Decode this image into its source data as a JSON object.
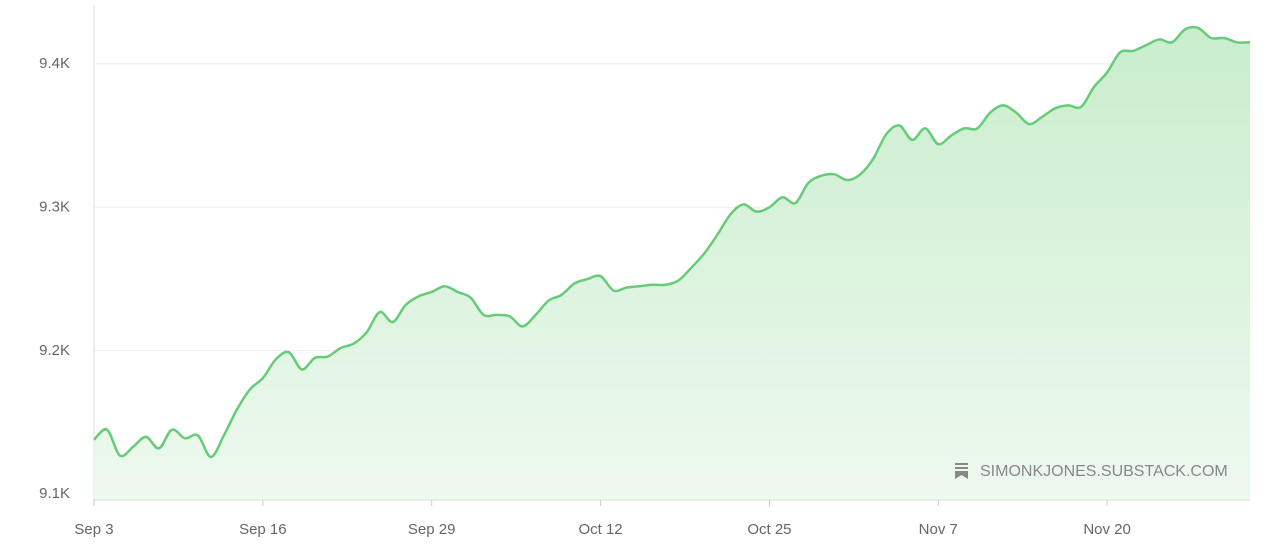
{
  "chart_data": {
    "type": "area",
    "categories": [
      "Sep 3",
      null,
      null,
      null,
      null,
      null,
      null,
      null,
      null,
      null,
      null,
      null,
      null,
      "Sep 16",
      null,
      null,
      null,
      null,
      null,
      null,
      null,
      null,
      null,
      null,
      null,
      null,
      "Sep 29",
      null,
      null,
      null,
      null,
      null,
      null,
      null,
      null,
      null,
      null,
      null,
      null,
      "Oct 12",
      null,
      null,
      null,
      null,
      null,
      null,
      null,
      null,
      null,
      null,
      null,
      null,
      "Oct 25",
      null,
      null,
      null,
      null,
      null,
      null,
      null,
      null,
      null,
      null,
      null,
      null,
      "Nov 7",
      null,
      null,
      null,
      null,
      null,
      null,
      null,
      null,
      null,
      null,
      null,
      null,
      "Nov 20",
      null,
      null,
      null,
      null,
      null,
      null,
      null,
      null,
      null,
      null,
      null
    ],
    "values": [
      9138,
      9145,
      9127,
      9133,
      9140,
      9132,
      9145,
      9139,
      9141,
      9126,
      9141,
      9159,
      9173,
      9181,
      9194,
      9199,
      9187,
      9195,
      9196,
      9202,
      9205,
      9213,
      9227,
      9220,
      9232,
      9238,
      9241,
      9245,
      9241,
      9237,
      9225,
      9225,
      9224,
      9217,
      9225,
      9235,
      9239,
      9247,
      9250,
      9252,
      9242,
      9244,
      9245,
      9246,
      9246,
      9249,
      9258,
      9268,
      9281,
      9295,
      9302,
      9297,
      9300,
      9307,
      9303,
      9317,
      9322,
      9323,
      9319,
      9323,
      9334,
      9351,
      9357,
      9347,
      9355,
      9344,
      9350,
      9355,
      9355,
      9366,
      9371,
      9366,
      9358,
      9363,
      9369,
      9371,
      9370,
      9384,
      9394,
      9408,
      9409,
      9413,
      9417,
      9415,
      9424,
      9425,
      9418,
      9418,
      9415,
      9415
    ],
    "color": "#66cc77",
    "ylim": [
      9096,
      9441
    ],
    "yticks": [
      {
        "value": 9100,
        "label": "9.1K"
      },
      {
        "value": 9200,
        "label": "9.2K"
      },
      {
        "value": 9300,
        "label": "9.3K"
      },
      {
        "value": 9400,
        "label": "9.4K"
      }
    ],
    "grid": true,
    "watermark": "SIMONKJONES.SUBSTACK.COM"
  }
}
